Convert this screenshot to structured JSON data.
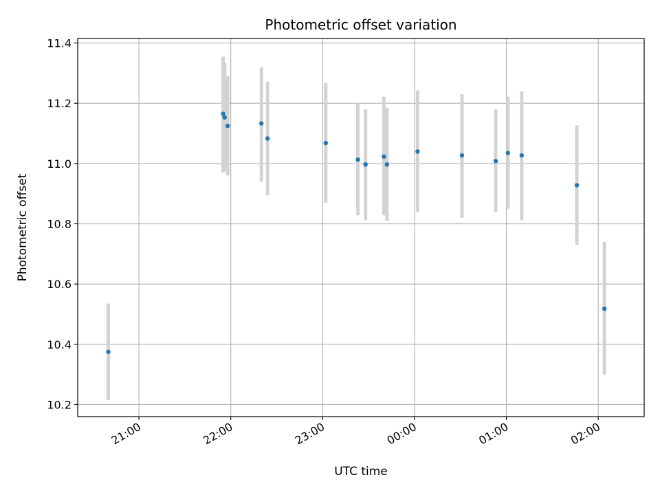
{
  "chart_data": {
    "type": "scatter",
    "title": "Photometric offset variation",
    "xlabel": "UTC time",
    "ylabel": "Photometric offset",
    "x_unit": "UTC time (hours)",
    "xlim": [
      "20:20",
      "02:30"
    ],
    "ylim": [
      10.16,
      11.415
    ],
    "x_ticks": [
      "21:00",
      "22:00",
      "23:00",
      "00:00",
      "01:00",
      "02:00"
    ],
    "y_ticks": [
      "10.2",
      "10.4",
      "10.6",
      "10.8",
      "11.0",
      "11.2",
      "11.4"
    ],
    "grid": true,
    "legend": "none",
    "colors": {
      "points": "#1f77b4",
      "error_bars": "#d3d3d3",
      "grid": "#b0b0b0",
      "axes": "#000000"
    },
    "points": [
      {
        "x": "20:40",
        "y": 10.375,
        "y_low": 10.215,
        "y_high": 10.535
      },
      {
        "x": "21:55",
        "y": 11.165,
        "y_low": 10.97,
        "y_high": 11.355
      },
      {
        "x": "21:56",
        "y": 11.153,
        "y_low": 10.975,
        "y_high": 11.335
      },
      {
        "x": "21:58",
        "y": 11.125,
        "y_low": 10.96,
        "y_high": 11.29
      },
      {
        "x": "22:20",
        "y": 11.133,
        "y_low": 10.94,
        "y_high": 11.32
      },
      {
        "x": "22:24",
        "y": 11.083,
        "y_low": 10.895,
        "y_high": 11.272
      },
      {
        "x": "23:02",
        "y": 11.068,
        "y_low": 10.87,
        "y_high": 11.268
      },
      {
        "x": "23:23",
        "y": 11.013,
        "y_low": 10.828,
        "y_high": 11.2
      },
      {
        "x": "23:28",
        "y": 10.997,
        "y_low": 10.812,
        "y_high": 11.18
      },
      {
        "x": "23:40",
        "y": 11.023,
        "y_low": 10.828,
        "y_high": 11.222
      },
      {
        "x": "23:42",
        "y": 10.997,
        "y_low": 10.81,
        "y_high": 11.185
      },
      {
        "x": "00:02",
        "y": 11.04,
        "y_low": 10.84,
        "y_high": 11.243
      },
      {
        "x": "00:31",
        "y": 11.027,
        "y_low": 10.82,
        "y_high": 11.23
      },
      {
        "x": "00:53",
        "y": 11.008,
        "y_low": 10.838,
        "y_high": 11.18
      },
      {
        "x": "01:01",
        "y": 11.035,
        "y_low": 10.85,
        "y_high": 11.222
      },
      {
        "x": "01:10",
        "y": 11.027,
        "y_low": 10.812,
        "y_high": 11.24
      },
      {
        "x": "01:46",
        "y": 10.928,
        "y_low": 10.73,
        "y_high": 11.127
      },
      {
        "x": "02:04",
        "y": 10.518,
        "y_low": 10.3,
        "y_high": 10.74
      }
    ]
  }
}
